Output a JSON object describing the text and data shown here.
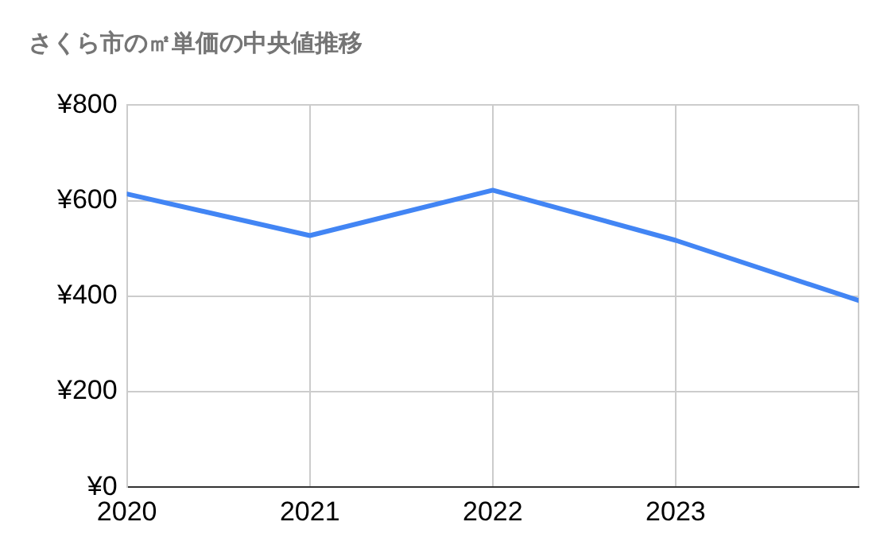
{
  "chart_data": {
    "type": "line",
    "title": "さくら市の㎡単価の中央値推移",
    "x": [
      2020,
      2021,
      2022,
      2023,
      2024
    ],
    "series": [
      {
        "color": "#4285f4",
        "values": [
          614,
          527,
          622,
          517,
          391
        ]
      }
    ],
    "xlim": [
      2020,
      2024
    ],
    "xticks": [
      2020,
      2021,
      2022,
      2023,
      {
        "value": 2024,
        "label": null
      }
    ],
    "ylim": [
      0,
      800
    ],
    "yticks": [
      {
        "value": 0,
        "label": "¥0"
      },
      {
        "value": 200,
        "label": "¥200"
      },
      {
        "value": 400,
        "label": "¥400"
      },
      {
        "value": 600,
        "label": "¥600"
      },
      {
        "value": 800,
        "label": "¥800"
      }
    ],
    "grid": true,
    "legend": false,
    "marker": "none",
    "line_style": "solid"
  }
}
